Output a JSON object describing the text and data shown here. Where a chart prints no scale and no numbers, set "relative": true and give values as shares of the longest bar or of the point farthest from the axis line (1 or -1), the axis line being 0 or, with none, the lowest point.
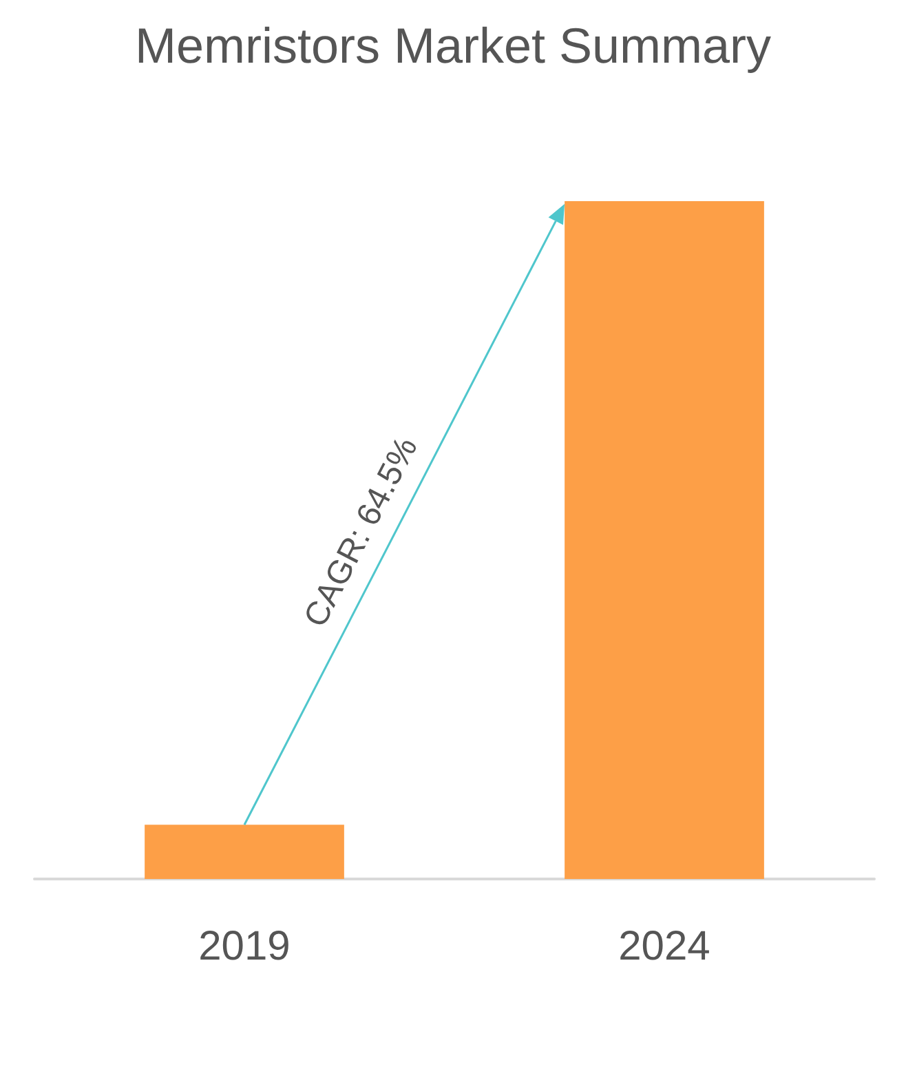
{
  "chart_data": {
    "type": "bar",
    "title": "Memristors Market Summary",
    "categories": [
      "2019",
      "2024"
    ],
    "values": [
      0.08,
      1
    ],
    "color": "#fd9f47",
    "relative": true,
    "annotations": [
      "CAGR: 64.5%"
    ]
  }
}
